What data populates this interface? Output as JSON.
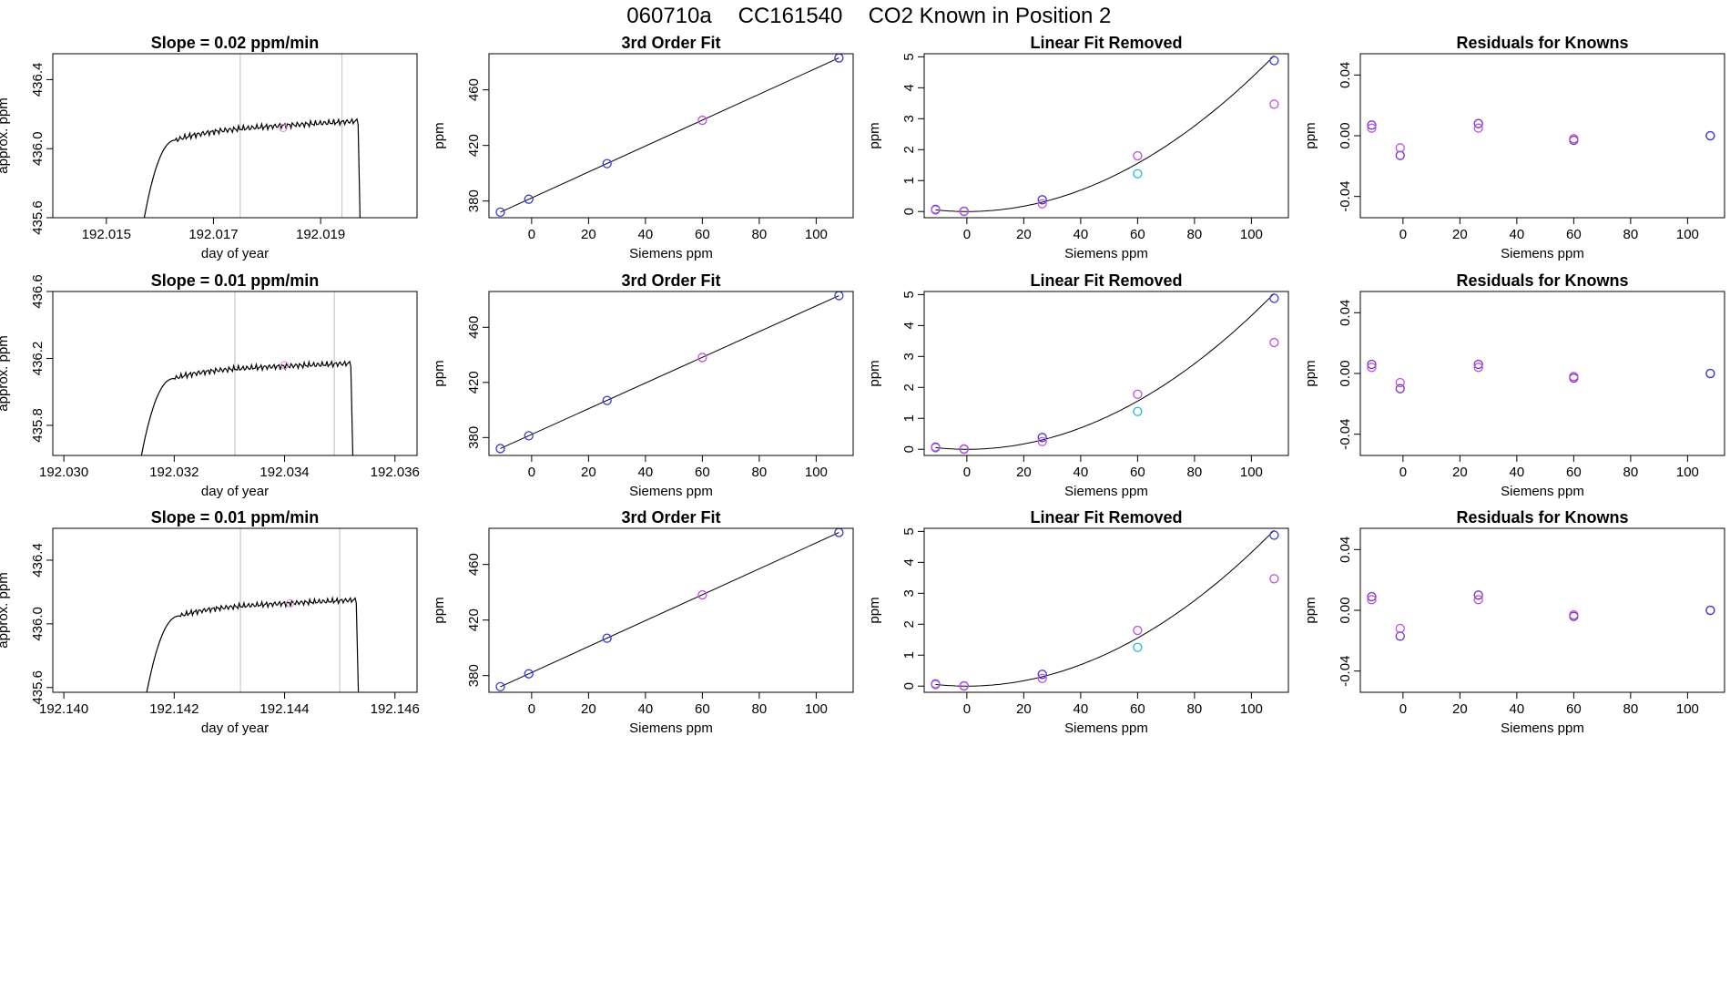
{
  "header": {
    "run_id": "060710a",
    "tank_id": "CC161540",
    "description": "CO2 Known in Position  2"
  },
  "colors": {
    "trace": "#000000",
    "vline": "#bebebe",
    "blue": "#3a3ad0",
    "magenta": "#c050e0",
    "cyan": "#22b8d8",
    "purple": "#7030c0",
    "pink_marker": "#e080e0"
  },
  "chart_data": [
    {
      "type": "line",
      "title": "Slope =  0.02  ppm/min",
      "xlabel": "day of year",
      "ylabel": "approx. ppm",
      "xlim": [
        192.014,
        192.0208
      ],
      "ylim": [
        435.6,
        436.55
      ],
      "xticks": [
        "192.015",
        "192.017",
        "192.019"
      ],
      "xtick_values": [
        192.015,
        192.017,
        192.019
      ],
      "yticks": [
        "435.6",
        "436.0",
        "436.4"
      ],
      "ytick_values": [
        435.6,
        436.0,
        436.4
      ],
      "vlines": [
        192.0175,
        192.0194
      ],
      "trace": {
        "x0": 192.0156,
        "x_rise": 192.0163,
        "x_drop_start": 192.0197,
        "x_end": 192.01975,
        "plateau": 436.1,
        "plateau_end": 436.16
      },
      "markers": [
        {
          "x": 192.0183,
          "y": 436.12,
          "color": "pink_marker"
        }
      ]
    },
    {
      "type": "line",
      "title": "Slope =  0.01  ppm/min",
      "xlabel": "day of year",
      "ylabel": "approx. ppm",
      "xlim": [
        192.0298,
        192.0364
      ],
      "ylim": [
        435.62,
        436.6
      ],
      "xticks": [
        "192.030",
        "192.032",
        "192.034",
        "192.036"
      ],
      "xtick_values": [
        192.03,
        192.032,
        192.034,
        192.036
      ],
      "yticks": [
        "435.8",
        "436.2",
        "436.6"
      ],
      "ytick_values": [
        435.8,
        436.2,
        436.6
      ],
      "vlines": [
        192.0331,
        192.0349
      ],
      "trace": {
        "x0": 192.0313,
        "x_rise": 192.032,
        "x_drop_start": 192.0352,
        "x_end": 192.03525,
        "plateau": 436.13,
        "plateau_end": 436.17
      },
      "markers": [
        {
          "x": 192.034,
          "y": 436.16,
          "color": "pink_marker"
        }
      ]
    },
    {
      "type": "line",
      "title": "Slope =  0.01  ppm/min",
      "xlabel": "day of year",
      "ylabel": "approx. ppm",
      "xlim": [
        192.1398,
        192.1464
      ],
      "ylim": [
        435.57,
        436.6
      ],
      "xticks": [
        "192.140",
        "192.142",
        "192.144",
        "192.146"
      ],
      "xtick_values": [
        192.14,
        192.142,
        192.144,
        192.146
      ],
      "yticks": [
        "435.6",
        "436.0",
        "436.4"
      ],
      "ytick_values": [
        435.6,
        436.0,
        436.4
      ],
      "vlines": [
        192.1432,
        192.145
      ],
      "trace": {
        "x0": 192.1414,
        "x_rise": 192.1421,
        "x_drop_start": 192.1453,
        "x_end": 192.14535,
        "plateau": 436.1,
        "plateau_end": 436.15
      },
      "markers": [
        {
          "x": 192.1441,
          "y": 436.13,
          "color": "pink_marker"
        }
      ]
    },
    {
      "type": "scatter",
      "title": "3rd Order Fit",
      "xlabel": "Siemens ppm",
      "ylabel": "ppm",
      "xlim": [
        -15,
        113
      ],
      "ylim": [
        368,
        486
      ],
      "xticks": [
        "0",
        "20",
        "40",
        "60",
        "80",
        "100"
      ],
      "xtick_values": [
        0,
        20,
        40,
        60,
        80,
        100
      ],
      "yticks": [
        "380",
        "420",
        "460"
      ],
      "ytick_values": [
        380,
        420,
        460
      ],
      "fit_line": [
        [
          -11,
          372.0
        ],
        [
          108,
          483.0
        ]
      ],
      "points": [
        {
          "x": -11,
          "y": 372.0,
          "color": "blue"
        },
        {
          "x": -1,
          "y": 381.3,
          "color": "blue"
        },
        {
          "x": 26.5,
          "y": 406.9,
          "color": "blue"
        },
        {
          "x": 60,
          "y": 438.1,
          "color": "magenta"
        },
        {
          "x": 108,
          "y": 483.0,
          "color": "blue"
        }
      ]
    },
    {
      "type": "scatter",
      "title": "3rd Order Fit",
      "xlabel": "Siemens ppm",
      "ylabel": "ppm",
      "xlim": [
        -15,
        113
      ],
      "ylim": [
        367,
        486
      ],
      "xticks": [
        "0",
        "20",
        "40",
        "60",
        "80",
        "100"
      ],
      "xtick_values": [
        0,
        20,
        40,
        60,
        80,
        100
      ],
      "yticks": [
        "380",
        "420",
        "460"
      ],
      "ytick_values": [
        380,
        420,
        460
      ],
      "fit_line": [
        [
          -11,
          372.0
        ],
        [
          108,
          483.0
        ]
      ],
      "points": [
        {
          "x": -11,
          "y": 372.0,
          "color": "blue"
        },
        {
          "x": -1,
          "y": 381.3,
          "color": "blue"
        },
        {
          "x": 26.5,
          "y": 406.9,
          "color": "blue"
        },
        {
          "x": 60,
          "y": 438.1,
          "color": "magenta"
        },
        {
          "x": 108,
          "y": 483.0,
          "color": "blue"
        }
      ]
    },
    {
      "type": "scatter",
      "title": "3rd Order Fit",
      "xlabel": "Siemens ppm",
      "ylabel": "ppm",
      "xlim": [
        -15,
        113
      ],
      "ylim": [
        368,
        486
      ],
      "xticks": [
        "0",
        "20",
        "40",
        "60",
        "80",
        "100"
      ],
      "xtick_values": [
        0,
        20,
        40,
        60,
        80,
        100
      ],
      "yticks": [
        "380",
        "420",
        "460"
      ],
      "ytick_values": [
        380,
        420,
        460
      ],
      "fit_line": [
        [
          -11,
          372.0
        ],
        [
          108,
          483.0
        ]
      ],
      "points": [
        {
          "x": -11,
          "y": 372.0,
          "color": "blue"
        },
        {
          "x": -1,
          "y": 381.3,
          "color": "blue"
        },
        {
          "x": 26.5,
          "y": 406.9,
          "color": "blue"
        },
        {
          "x": 60,
          "y": 438.1,
          "color": "magenta"
        },
        {
          "x": 108,
          "y": 483.0,
          "color": "blue"
        }
      ]
    },
    {
      "type": "scatter",
      "title": "Linear Fit Removed",
      "xlabel": "Siemens ppm",
      "ylabel": "ppm",
      "xlim": [
        -15,
        113
      ],
      "ylim": [
        -0.2,
        5.1
      ],
      "xticks": [
        "0",
        "20",
        "40",
        "60",
        "80",
        "100"
      ],
      "xtick_values": [
        0,
        20,
        40,
        60,
        80,
        100
      ],
      "yticks": [
        "0",
        "1",
        "2",
        "3",
        "4",
        "5"
      ],
      "ytick_values": [
        0,
        1,
        2,
        3,
        4,
        5
      ],
      "curve": {
        "a": 0.000432,
        "b": 0.0,
        "c": 0.0,
        "x_from": -11,
        "x_to": 108
      },
      "points": [
        {
          "x": -11,
          "y": 0.07,
          "color": "blue"
        },
        {
          "x": -11,
          "y": 0.05,
          "color": "magenta"
        },
        {
          "x": -1,
          "y": 0.01,
          "color": "blue"
        },
        {
          "x": -1,
          "y": 0.0,
          "color": "magenta"
        },
        {
          "x": 26.5,
          "y": 0.38,
          "color": "blue"
        },
        {
          "x": 26.5,
          "y": 0.25,
          "color": "magenta"
        },
        {
          "x": 60,
          "y": 1.8,
          "color": "magenta"
        },
        {
          "x": 60,
          "y": 1.22,
          "color": "cyan"
        },
        {
          "x": 108,
          "y": 4.88,
          "color": "blue"
        },
        {
          "x": 108,
          "y": 3.47,
          "color": "magenta"
        }
      ]
    },
    {
      "type": "scatter",
      "title": "Linear Fit Removed",
      "xlabel": "Siemens ppm",
      "ylabel": "ppm",
      "xlim": [
        -15,
        113
      ],
      "ylim": [
        -0.2,
        5.1
      ],
      "xticks": [
        "0",
        "20",
        "40",
        "60",
        "80",
        "100"
      ],
      "xtick_values": [
        0,
        20,
        40,
        60,
        80,
        100
      ],
      "yticks": [
        "0",
        "1",
        "2",
        "3",
        "4",
        "5"
      ],
      "ytick_values": [
        0,
        1,
        2,
        3,
        4,
        5
      ],
      "curve": {
        "a": 0.000432,
        "b": 0.0,
        "c": 0.0,
        "x_from": -11,
        "x_to": 108
      },
      "points": [
        {
          "x": -11,
          "y": 0.07,
          "color": "blue"
        },
        {
          "x": -11,
          "y": 0.05,
          "color": "magenta"
        },
        {
          "x": -1,
          "y": 0.01,
          "color": "blue"
        },
        {
          "x": -1,
          "y": 0.0,
          "color": "magenta"
        },
        {
          "x": 26.5,
          "y": 0.38,
          "color": "blue"
        },
        {
          "x": 26.5,
          "y": 0.25,
          "color": "magenta"
        },
        {
          "x": 60,
          "y": 1.78,
          "color": "magenta"
        },
        {
          "x": 60,
          "y": 1.22,
          "color": "cyan"
        },
        {
          "x": 108,
          "y": 4.88,
          "color": "blue"
        },
        {
          "x": 108,
          "y": 3.45,
          "color": "magenta"
        }
      ]
    },
    {
      "type": "scatter",
      "title": "Linear Fit Removed",
      "xlabel": "Siemens ppm",
      "ylabel": "ppm",
      "xlim": [
        -15,
        113
      ],
      "ylim": [
        -0.2,
        5.1
      ],
      "xticks": [
        "0",
        "20",
        "40",
        "60",
        "80",
        "100"
      ],
      "xtick_values": [
        0,
        20,
        40,
        60,
        80,
        100
      ],
      "yticks": [
        "0",
        "1",
        "2",
        "3",
        "4",
        "5"
      ],
      "ytick_values": [
        0,
        1,
        2,
        3,
        4,
        5
      ],
      "curve": {
        "a": 0.000432,
        "b": 0.0,
        "c": 0.0,
        "x_from": -11,
        "x_to": 108
      },
      "points": [
        {
          "x": -11,
          "y": 0.07,
          "color": "blue"
        },
        {
          "x": -11,
          "y": 0.05,
          "color": "magenta"
        },
        {
          "x": -1,
          "y": 0.01,
          "color": "blue"
        },
        {
          "x": -1,
          "y": 0.0,
          "color": "magenta"
        },
        {
          "x": 26.5,
          "y": 0.38,
          "color": "blue"
        },
        {
          "x": 26.5,
          "y": 0.25,
          "color": "magenta"
        },
        {
          "x": 60,
          "y": 1.8,
          "color": "magenta"
        },
        {
          "x": 60,
          "y": 1.25,
          "color": "cyan"
        },
        {
          "x": 108,
          "y": 4.88,
          "color": "blue"
        },
        {
          "x": 108,
          "y": 3.47,
          "color": "magenta"
        }
      ]
    },
    {
      "type": "scatter",
      "title": "Residuals for Knowns",
      "xlabel": "Siemens ppm",
      "ylabel": "ppm",
      "xlim": [
        -15,
        113
      ],
      "ylim": [
        -0.054,
        0.054
      ],
      "xticks": [
        "0",
        "20",
        "40",
        "60",
        "80",
        "100"
      ],
      "xtick_values": [
        0,
        20,
        40,
        60,
        80,
        100
      ],
      "yticks": [
        "-0.04",
        "0.00",
        "0.04"
      ],
      "ytick_values": [
        -0.04,
        0.0,
        0.04
      ],
      "points": [
        {
          "x": -11,
          "y": 0.007,
          "color": "purple"
        },
        {
          "x": -11,
          "y": 0.005,
          "color": "magenta"
        },
        {
          "x": -1,
          "y": -0.013,
          "color": "purple"
        },
        {
          "x": -1,
          "y": -0.008,
          "color": "magenta"
        },
        {
          "x": 26.5,
          "y": 0.008,
          "color": "purple"
        },
        {
          "x": 26.5,
          "y": 0.005,
          "color": "magenta"
        },
        {
          "x": 60,
          "y": -0.003,
          "color": "purple"
        },
        {
          "x": 60,
          "y": -0.002,
          "color": "magenta"
        },
        {
          "x": 108,
          "y": 0.0,
          "color": "purple"
        },
        {
          "x": 108,
          "y": 0.0,
          "color": "blue"
        }
      ]
    },
    {
      "type": "scatter",
      "title": "Residuals for Knowns",
      "xlabel": "Siemens ppm",
      "ylabel": "ppm",
      "xlim": [
        -15,
        113
      ],
      "ylim": [
        -0.054,
        0.054
      ],
      "xticks": [
        "0",
        "20",
        "40",
        "60",
        "80",
        "100"
      ],
      "xtick_values": [
        0,
        20,
        40,
        60,
        80,
        100
      ],
      "yticks": [
        "-0.04",
        "0.00",
        "0.04"
      ],
      "ytick_values": [
        -0.04,
        0.0,
        0.04
      ],
      "points": [
        {
          "x": -11,
          "y": 0.006,
          "color": "purple"
        },
        {
          "x": -11,
          "y": 0.004,
          "color": "magenta"
        },
        {
          "x": -1,
          "y": -0.01,
          "color": "purple"
        },
        {
          "x": -1,
          "y": -0.006,
          "color": "magenta"
        },
        {
          "x": 26.5,
          "y": 0.006,
          "color": "purple"
        },
        {
          "x": 26.5,
          "y": 0.004,
          "color": "magenta"
        },
        {
          "x": 60,
          "y": -0.003,
          "color": "purple"
        },
        {
          "x": 60,
          "y": -0.002,
          "color": "magenta"
        },
        {
          "x": 108,
          "y": 0.0,
          "color": "purple"
        },
        {
          "x": 108,
          "y": 0.0,
          "color": "blue"
        }
      ]
    },
    {
      "type": "scatter",
      "title": "Residuals for Knowns",
      "xlabel": "Siemens ppm",
      "ylabel": "ppm",
      "xlim": [
        -15,
        113
      ],
      "ylim": [
        -0.054,
        0.054
      ],
      "xticks": [
        "0",
        "20",
        "40",
        "60",
        "80",
        "100"
      ],
      "xtick_values": [
        0,
        20,
        40,
        60,
        80,
        100
      ],
      "yticks": [
        "-0.04",
        "0.00",
        "0.04"
      ],
      "ytick_values": [
        -0.04,
        0.0,
        0.04
      ],
      "points": [
        {
          "x": -11,
          "y": 0.009,
          "color": "purple"
        },
        {
          "x": -11,
          "y": 0.007,
          "color": "magenta"
        },
        {
          "x": -1,
          "y": -0.017,
          "color": "purple"
        },
        {
          "x": -1,
          "y": -0.012,
          "color": "magenta"
        },
        {
          "x": 26.5,
          "y": 0.01,
          "color": "purple"
        },
        {
          "x": 26.5,
          "y": 0.007,
          "color": "magenta"
        },
        {
          "x": 60,
          "y": -0.004,
          "color": "purple"
        },
        {
          "x": 60,
          "y": -0.003,
          "color": "magenta"
        },
        {
          "x": 108,
          "y": 0.0,
          "color": "purple"
        },
        {
          "x": 108,
          "y": 0.0,
          "color": "blue"
        }
      ]
    }
  ]
}
